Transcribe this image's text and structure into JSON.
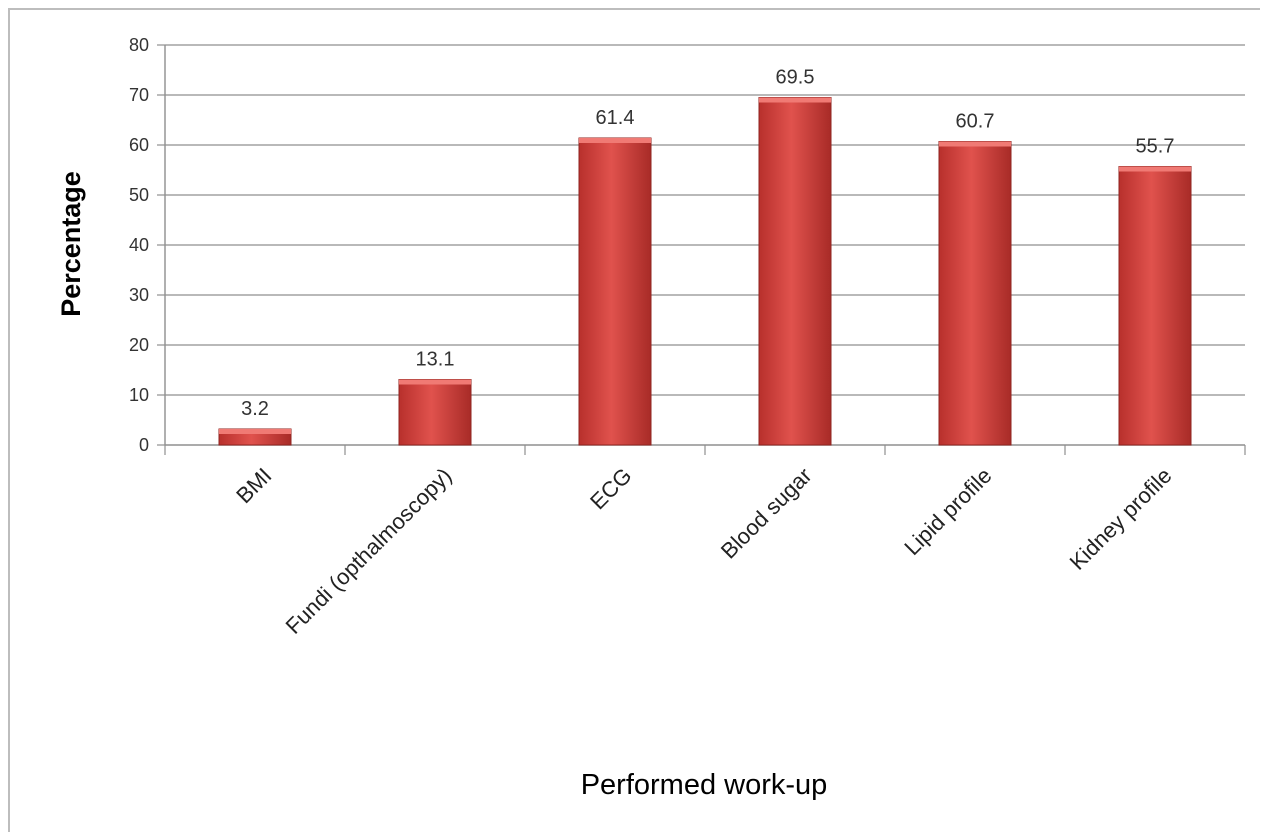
{
  "chart_data": {
    "type": "bar",
    "title": "",
    "xlabel": "Performed work-up",
    "ylabel": "Percentage",
    "ylim": [
      0,
      80
    ],
    "yticks": [
      0,
      10,
      20,
      30,
      40,
      50,
      60,
      70,
      80
    ],
    "grid": true,
    "legend": "none",
    "bar_color": "#d94a46",
    "categories": [
      "BMI",
      "Fundi (opthalmoscopy)",
      "ECG",
      "Blood sugar",
      "Lipid profile",
      "Kidney profile"
    ],
    "values": [
      3.2,
      13.1,
      61.4,
      69.5,
      60.7,
      55.7
    ],
    "data_labels": [
      "3.2",
      "13.1",
      "61.4",
      "69.5",
      "60.7",
      "55.7"
    ]
  }
}
